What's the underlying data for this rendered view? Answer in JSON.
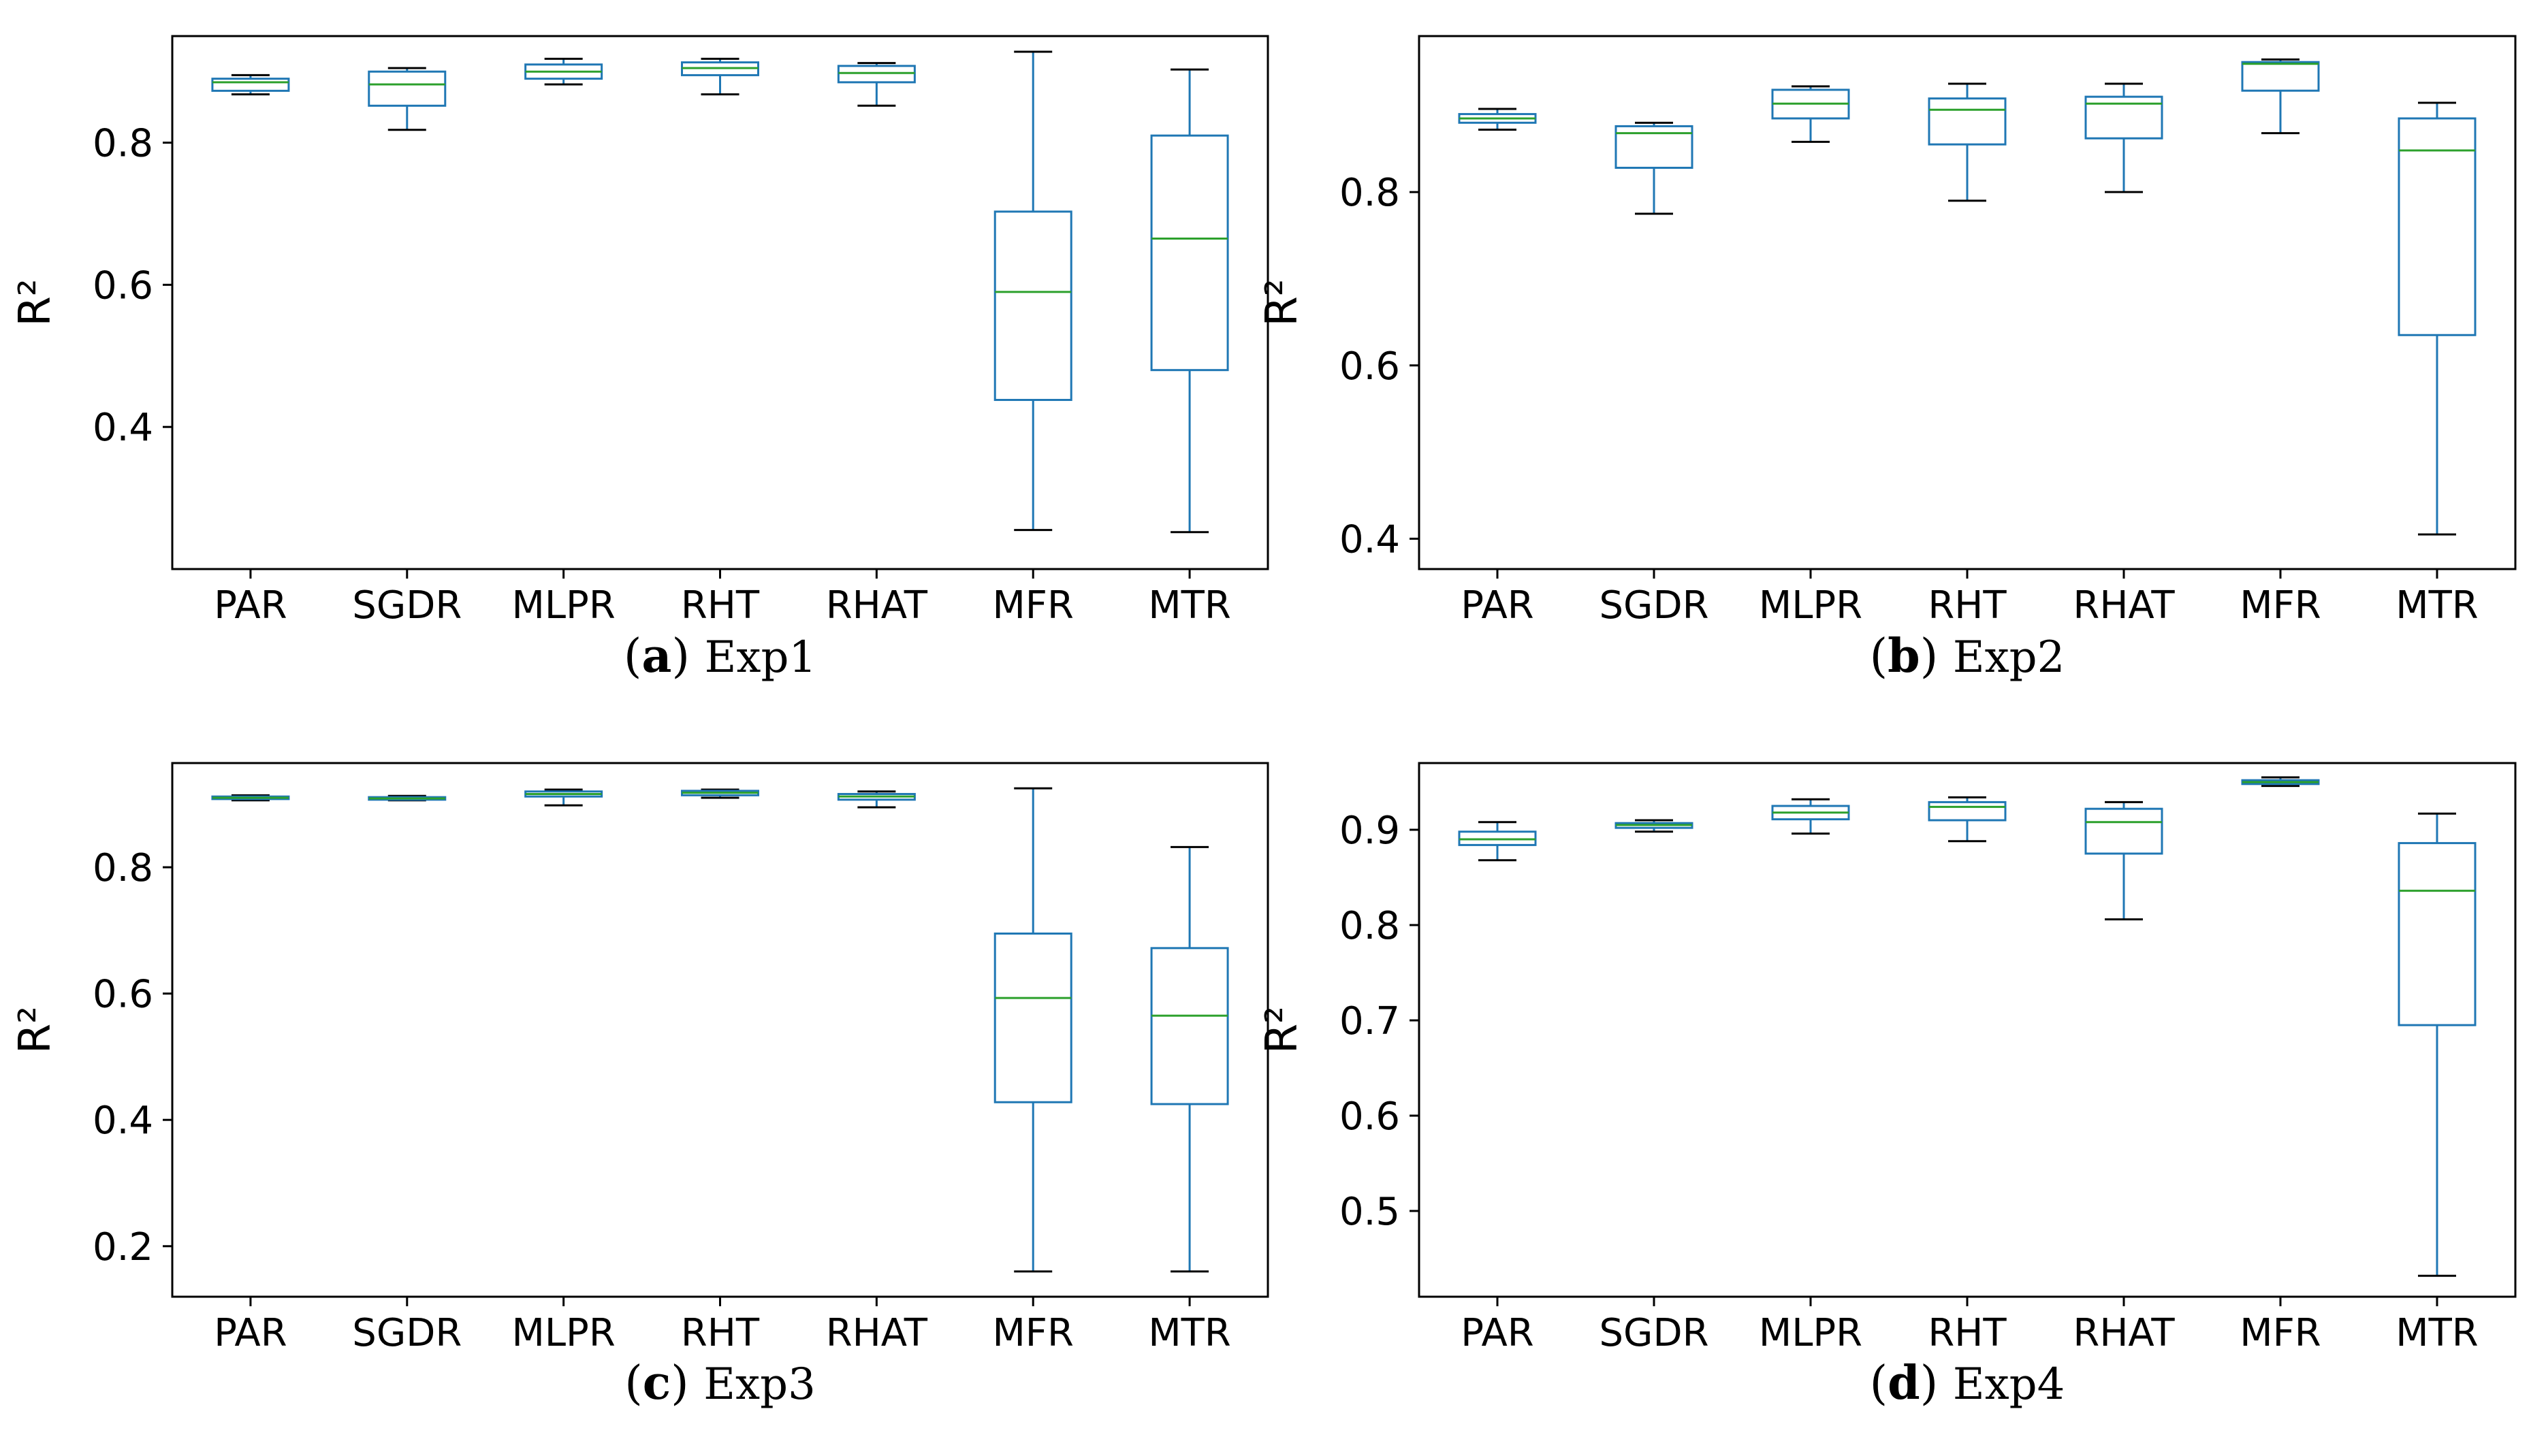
{
  "colors": {
    "box": "#1f77b4",
    "median": "#2ca02c",
    "axis": "#000000"
  },
  "chart_data": [
    {
      "type": "box",
      "caption_letter": "a",
      "caption_text": "Exp1",
      "ylabel": "R²",
      "ylim": [
        0.2,
        0.95
      ],
      "yticks": [
        0.4,
        0.6,
        0.8
      ],
      "ytick_labels": [
        "0.4",
        "0.6",
        "0.8"
      ],
      "categories": [
        "PAR",
        "SGDR",
        "MLPR",
        "RHT",
        "RHAT",
        "MFR",
        "MTR"
      ],
      "boxes": [
        {
          "min": 0.868,
          "q1": 0.873,
          "median": 0.885,
          "q3": 0.89,
          "max": 0.895
        },
        {
          "min": 0.818,
          "q1": 0.852,
          "median": 0.882,
          "q3": 0.9,
          "max": 0.905
        },
        {
          "min": 0.882,
          "q1": 0.89,
          "median": 0.9,
          "q3": 0.91,
          "max": 0.918
        },
        {
          "min": 0.868,
          "q1": 0.895,
          "median": 0.905,
          "q3": 0.913,
          "max": 0.918
        },
        {
          "min": 0.852,
          "q1": 0.885,
          "median": 0.898,
          "q3": 0.908,
          "max": 0.912
        },
        {
          "min": 0.255,
          "q1": 0.438,
          "median": 0.59,
          "q3": 0.703,
          "max": 0.928
        },
        {
          "min": 0.252,
          "q1": 0.48,
          "median": 0.665,
          "q3": 0.81,
          "max": 0.903
        }
      ]
    },
    {
      "type": "box",
      "caption_letter": "b",
      "caption_text": "Exp2",
      "ylabel": "R²",
      "ylim": [
        0.365,
        0.98
      ],
      "yticks": [
        0.4,
        0.6,
        0.8
      ],
      "ytick_labels": [
        "0.4",
        "0.6",
        "0.8"
      ],
      "categories": [
        "PAR",
        "SGDR",
        "MLPR",
        "RHT",
        "RHAT",
        "MFR",
        "MTR"
      ],
      "boxes": [
        {
          "min": 0.872,
          "q1": 0.88,
          "median": 0.885,
          "q3": 0.89,
          "max": 0.896
        },
        {
          "min": 0.775,
          "q1": 0.828,
          "median": 0.868,
          "q3": 0.876,
          "max": 0.88
        },
        {
          "min": 0.858,
          "q1": 0.885,
          "median": 0.902,
          "q3": 0.918,
          "max": 0.922
        },
        {
          "min": 0.79,
          "q1": 0.855,
          "median": 0.895,
          "q3": 0.908,
          "max": 0.925
        },
        {
          "min": 0.8,
          "q1": 0.862,
          "median": 0.902,
          "q3": 0.91,
          "max": 0.925
        },
        {
          "min": 0.868,
          "q1": 0.917,
          "median": 0.948,
          "q3": 0.95,
          "max": 0.953
        },
        {
          "min": 0.405,
          "q1": 0.635,
          "median": 0.848,
          "q3": 0.885,
          "max": 0.903
        }
      ]
    },
    {
      "type": "box",
      "caption_letter": "c",
      "caption_text": "Exp3",
      "ylabel": "R²",
      "ylim": [
        0.12,
        0.965
      ],
      "yticks": [
        0.2,
        0.4,
        0.6,
        0.8
      ],
      "ytick_labels": [
        "0.2",
        "0.4",
        "0.6",
        "0.8"
      ],
      "categories": [
        "PAR",
        "SGDR",
        "MLPR",
        "RHT",
        "RHAT",
        "MFR",
        "MTR"
      ],
      "boxes": [
        {
          "min": 0.906,
          "q1": 0.908,
          "median": 0.91,
          "q3": 0.912,
          "max": 0.914
        },
        {
          "min": 0.906,
          "q1": 0.907,
          "median": 0.909,
          "q3": 0.911,
          "max": 0.913
        },
        {
          "min": 0.898,
          "q1": 0.912,
          "median": 0.916,
          "q3": 0.92,
          "max": 0.923
        },
        {
          "min": 0.91,
          "q1": 0.914,
          "median": 0.918,
          "q3": 0.921,
          "max": 0.923
        },
        {
          "min": 0.895,
          "q1": 0.907,
          "median": 0.912,
          "q3": 0.916,
          "max": 0.92
        },
        {
          "min": 0.16,
          "q1": 0.428,
          "median": 0.593,
          "q3": 0.695,
          "max": 0.925
        },
        {
          "min": 0.16,
          "q1": 0.425,
          "median": 0.565,
          "q3": 0.672,
          "max": 0.832
        }
      ]
    },
    {
      "type": "box",
      "caption_letter": "d",
      "caption_text": "Exp4",
      "ylabel": "R²",
      "ylim": [
        0.41,
        0.97
      ],
      "yticks": [
        0.5,
        0.6,
        0.7,
        0.8,
        0.9
      ],
      "ytick_labels": [
        "0.5",
        "0.6",
        "0.7",
        "0.8",
        "0.9"
      ],
      "categories": [
        "PAR",
        "SGDR",
        "MLPR",
        "RHT",
        "RHAT",
        "MFR",
        "MTR"
      ],
      "boxes": [
        {
          "min": 0.868,
          "q1": 0.884,
          "median": 0.89,
          "q3": 0.898,
          "max": 0.908
        },
        {
          "min": 0.898,
          "q1": 0.902,
          "median": 0.905,
          "q3": 0.907,
          "max": 0.91
        },
        {
          "min": 0.896,
          "q1": 0.911,
          "median": 0.918,
          "q3": 0.925,
          "max": 0.932
        },
        {
          "min": 0.888,
          "q1": 0.91,
          "median": 0.924,
          "q3": 0.929,
          "max": 0.934
        },
        {
          "min": 0.806,
          "q1": 0.875,
          "median": 0.908,
          "q3": 0.922,
          "max": 0.929
        },
        {
          "min": 0.946,
          "q1": 0.948,
          "median": 0.95,
          "q3": 0.952,
          "max": 0.955
        },
        {
          "min": 0.432,
          "q1": 0.695,
          "median": 0.836,
          "q3": 0.886,
          "max": 0.917
        }
      ]
    }
  ]
}
